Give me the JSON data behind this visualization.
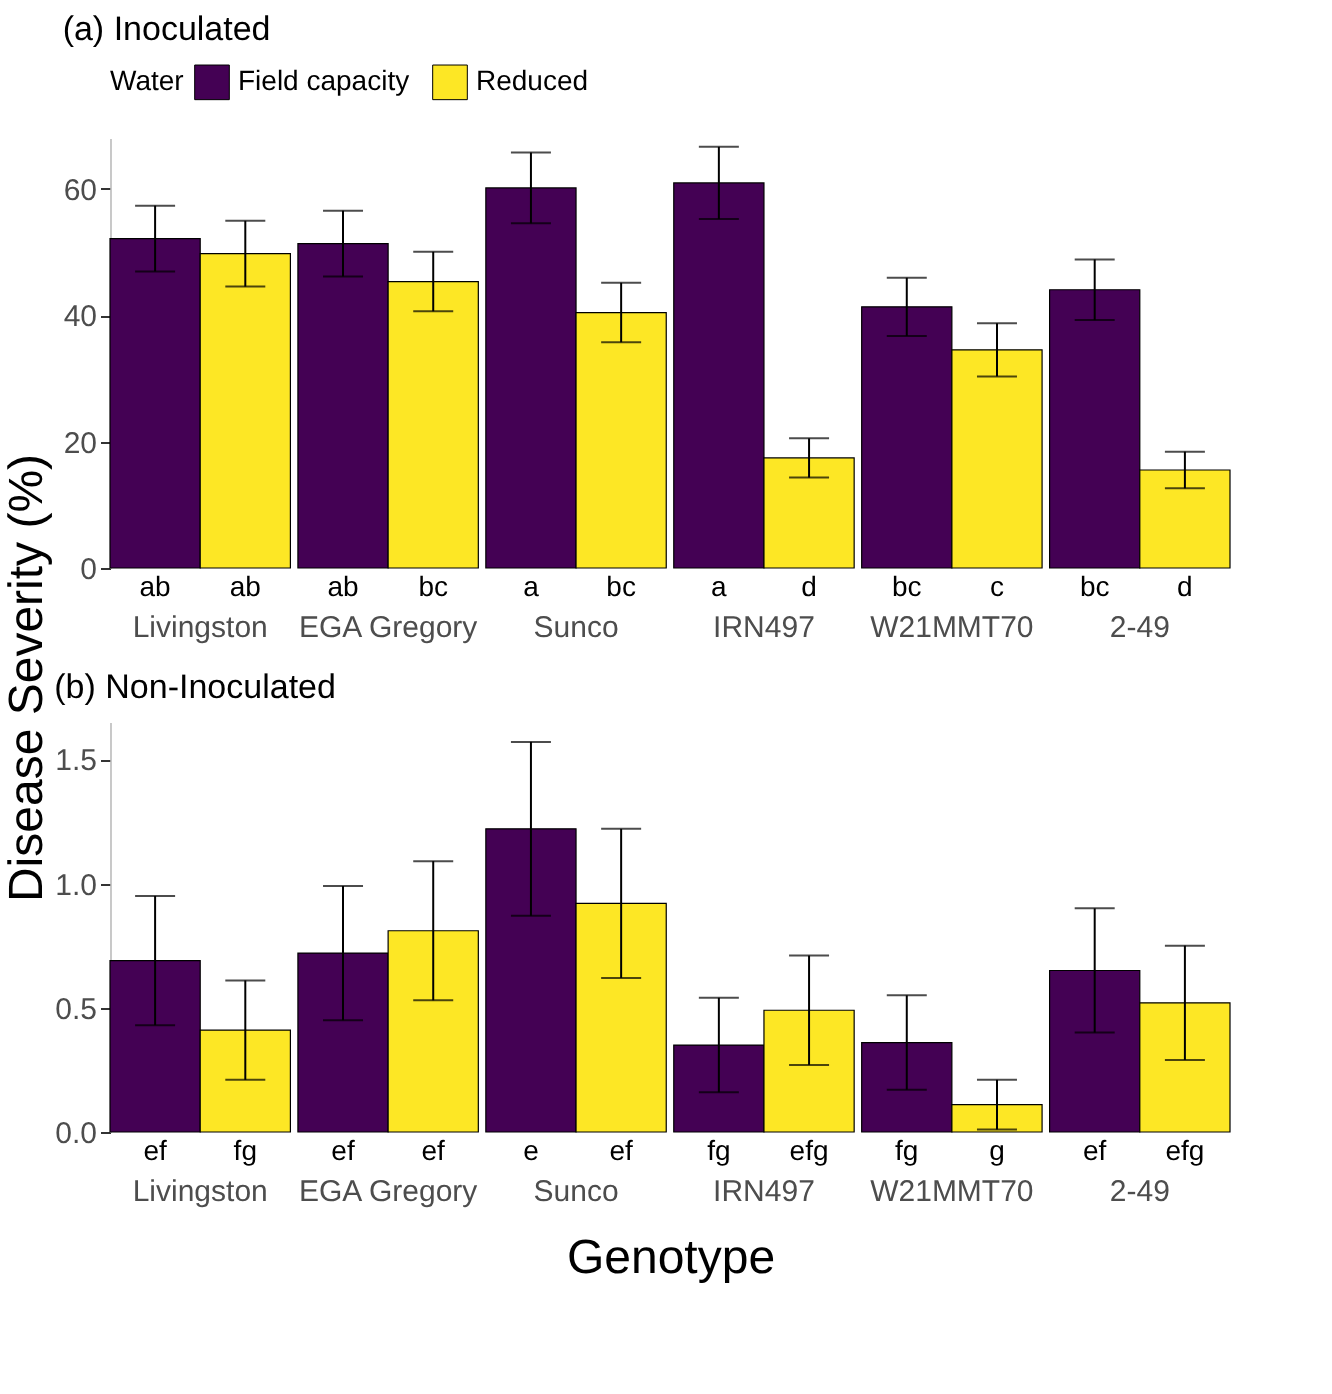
{
  "chart_data": [
    {
      "type": "bar",
      "title": "(a) Inoculated",
      "ylabel": "Disease Severity (%)",
      "legend_title": "Water",
      "legend": "top",
      "categories": [
        "Livingston",
        "EGA Gregory",
        "Sunco",
        "IRN497",
        "W21MMT70",
        "2-49"
      ],
      "series": [
        {
          "name": "Field capacity",
          "color": "#440154",
          "values": [
            52.1,
            51.3,
            60.1,
            60.9,
            41.3,
            44.0
          ],
          "errors": [
            5.2,
            5.2,
            5.6,
            5.7,
            4.6,
            4.8
          ],
          "value_labels": [
            "ab",
            "ab",
            "a",
            "a",
            "bc",
            "bc"
          ]
        },
        {
          "name": "Reduced",
          "color": "#fde725",
          "values": [
            49.7,
            45.3,
            40.4,
            17.4,
            34.5,
            15.5
          ],
          "errors": [
            5.2,
            4.7,
            4.7,
            3.1,
            4.2,
            2.9
          ],
          "value_labels": [
            "ab",
            "bc",
            "bc",
            "d",
            "c",
            "d"
          ]
        }
      ],
      "ylim": [
        0,
        68
      ],
      "yticks": [
        0,
        20,
        40,
        60
      ],
      "grid": false
    },
    {
      "type": "bar",
      "title": "(b) Non-Inoculated",
      "xlabel": "Genotype",
      "categories": [
        "Livingston",
        "EGA Gregory",
        "Sunco",
        "IRN497",
        "W21MMT70",
        "2-49"
      ],
      "series": [
        {
          "color": "#440154",
          "values": [
            0.69,
            0.72,
            1.22,
            0.35,
            0.36,
            0.65
          ],
          "errors": [
            0.26,
            0.27,
            0.35,
            0.19,
            0.19,
            0.25
          ],
          "value_labels": [
            "ef",
            "ef",
            "e",
            "fg",
            "fg",
            "ef"
          ]
        },
        {
          "color": "#fde725",
          "values": [
            0.41,
            0.81,
            0.92,
            0.49,
            0.11,
            0.52
          ],
          "errors": [
            0.2,
            0.28,
            0.3,
            0.22,
            0.1,
            0.23
          ],
          "value_labels": [
            "fg",
            "ef",
            "ef",
            "efg",
            "g",
            "efg"
          ]
        }
      ],
      "ylim": [
        0,
        1.65
      ],
      "yticks": [
        {
          "value": 0,
          "label": "0.0"
        },
        {
          "value": 0.5,
          "label": "0.5"
        },
        {
          "value": 1,
          "label": "1.0"
        },
        {
          "value": 1.5,
          "label": "1.5"
        }
      ],
      "grid": false
    }
  ]
}
